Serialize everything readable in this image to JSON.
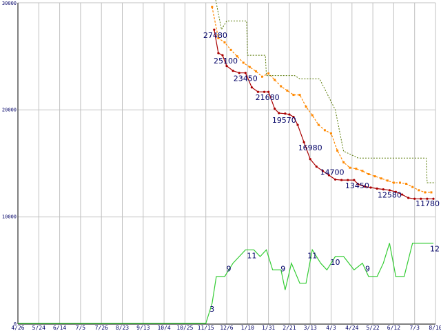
{
  "chart_data": {
    "type": "line",
    "grid": true,
    "ylim": [
      0,
      30000
    ],
    "y_ticks": [
      "0",
      "10000",
      "20000",
      "30000"
    ],
    "x_tick_labels": [
      "4/26",
      "5/24",
      "6/14",
      "7/5",
      "7/26",
      "8/23",
      "9/13",
      "10/4",
      "10/25",
      "11/15",
      "12/6",
      "1/10",
      "1/31",
      "2/21",
      "3/13",
      "4/3",
      "4/24",
      "5/22",
      "6/12",
      "7/3",
      "8/10"
    ],
    "colors": {
      "grid": "#c0c0c0",
      "price": "#aa0000",
      "avg": "#ff8800",
      "high": "#557700",
      "count": "#33cc33",
      "label": "#000066"
    },
    "series": [
      {
        "key": "price",
        "x": [
          9.4,
          9.6,
          9.8,
          10.0,
          10.3,
          10.6,
          10.9,
          11.2,
          11.5,
          11.8,
          12.0,
          12.3,
          12.5,
          12.8,
          13.0,
          13.2,
          13.4,
          13.7,
          14.0,
          14.3,
          14.6,
          14.9,
          15.2,
          15.5,
          15.8,
          16.1,
          16.3,
          16.6,
          16.9,
          17.2,
          17.5,
          17.8,
          18.1,
          18.4,
          18.7,
          19.0,
          19.3,
          19.6,
          19.9
        ],
        "values": [
          27480,
          25300,
          25100,
          24100,
          23650,
          23450,
          23450,
          22100,
          21680,
          21680,
          21680,
          20100,
          19700,
          19650,
          19570,
          19350,
          18600,
          16980,
          15400,
          14700,
          14300,
          13900,
          13500,
          13450,
          13450,
          13450,
          13050,
          12850,
          12750,
          12650,
          12580,
          12500,
          12350,
          12100,
          11780,
          11700,
          11700,
          11700,
          11700
        ],
        "point_labels": [
          {
            "x": 9.45,
            "y": 27480,
            "text": "27480"
          },
          {
            "x": 9.95,
            "y": 25100,
            "text": "25100"
          },
          {
            "x": 10.9,
            "y": 23450,
            "text": "23450"
          },
          {
            "x": 11.95,
            "y": 21680,
            "text": "21680"
          },
          {
            "x": 12.75,
            "y": 19570,
            "text": "19570"
          },
          {
            "x": 14.0,
            "y": 16980,
            "text": "16980"
          },
          {
            "x": 15.05,
            "y": 14700,
            "text": "14700"
          },
          {
            "x": 16.25,
            "y": 13450,
            "text": "13450"
          },
          {
            "x": 17.8,
            "y": 12580,
            "text": "12580"
          },
          {
            "x": 19.9,
            "y": 11780,
            "text": "11780"
          }
        ]
      },
      {
        "key": "avg",
        "x": [
          9.3,
          9.6,
          9.9,
          10.2,
          10.5,
          10.8,
          11.1,
          11.4,
          11.7,
          12.0,
          12.3,
          12.6,
          12.9,
          13.2,
          13.5,
          13.8,
          14.1,
          14.4,
          14.7,
          15.0,
          15.3,
          15.6,
          15.9,
          16.2,
          16.5,
          16.8,
          17.1,
          17.4,
          17.7,
          18.0,
          18.3,
          18.6,
          18.9,
          19.2,
          19.5,
          19.8
        ],
        "values": [
          29600,
          26700,
          26300,
          25600,
          25000,
          24400,
          24000,
          23600,
          23100,
          23400,
          22800,
          22200,
          21800,
          21400,
          21400,
          20300,
          19500,
          18600,
          18100,
          17800,
          16200,
          15100,
          14600,
          14500,
          14300,
          14000,
          13800,
          13600,
          13400,
          13200,
          13200,
          13100,
          12800,
          12500,
          12300,
          12300
        ]
      },
      {
        "key": "high",
        "x": [
          9.45,
          9.75,
          10.0,
          10.2,
          10.95,
          11.0,
          11.85,
          11.9,
          13.25,
          13.5,
          14.4,
          14.45,
          15.2,
          15.6,
          15.65,
          16.3,
          16.35,
          18.5,
          19.55,
          19.6,
          20.0
        ],
        "values": [
          30500,
          27500,
          28300,
          28300,
          28300,
          25100,
          25100,
          23200,
          23200,
          22900,
          22900,
          22900,
          20000,
          16100,
          16100,
          15500,
          15500,
          15500,
          15500,
          13200,
          13200
        ]
      },
      {
        "key": "count",
        "x": [
          0,
          2,
          4,
          6,
          8,
          9.0,
          9.3,
          9.5,
          9.9,
          10.3,
          10.6,
          10.9,
          11.3,
          11.6,
          11.9,
          12.2,
          12.6,
          12.8,
          13.1,
          13.5,
          13.8,
          14.1,
          14.5,
          14.8,
          15.2,
          15.6,
          16.1,
          16.5,
          16.8,
          17.2,
          17.5,
          17.8,
          18.1,
          18.5,
          18.9,
          19.3,
          19.6,
          19.9
        ],
        "values": [
          0,
          0,
          0,
          0,
          0,
          0,
          3,
          7,
          7,
          9,
          10,
          11,
          11,
          10,
          11,
          8,
          8,
          5,
          9,
          6,
          6,
          11,
          9,
          8,
          10,
          10,
          8,
          9,
          7,
          7,
          9,
          12,
          7,
          7,
          12,
          12,
          12,
          12
        ],
        "point_labels": [
          {
            "x": 9.3,
            "y": 3,
            "text": "3"
          },
          {
            "x": 10.1,
            "y": 9,
            "text": "9"
          },
          {
            "x": 11.2,
            "y": 11,
            "text": "11"
          },
          {
            "x": 12.7,
            "y": 9,
            "text": "9"
          },
          {
            "x": 14.1,
            "y": 11,
            "text": "11"
          },
          {
            "x": 15.2,
            "y": 10,
            "text": "10"
          },
          {
            "x": 16.75,
            "y": 9,
            "text": "9"
          },
          {
            "x": 19.85,
            "y": 12,
            "text": "12"
          }
        ]
      }
    ]
  }
}
